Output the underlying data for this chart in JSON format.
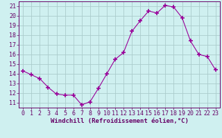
{
  "x": [
    0,
    1,
    2,
    3,
    4,
    5,
    6,
    7,
    8,
    9,
    10,
    11,
    12,
    13,
    14,
    15,
    16,
    17,
    18,
    19,
    20,
    21,
    22,
    23
  ],
  "y": [
    14.3,
    13.9,
    13.5,
    12.6,
    11.9,
    11.8,
    11.8,
    10.8,
    11.1,
    12.5,
    14.0,
    15.5,
    16.2,
    18.4,
    19.5,
    20.5,
    20.3,
    21.1,
    20.9,
    19.8,
    17.4,
    16.0,
    15.8,
    14.4
  ],
  "line_color": "#990099",
  "marker": "+",
  "marker_size": 4,
  "marker_lw": 1.2,
  "bg_color": "#cff0f0",
  "grid_color": "#aacccc",
  "xlabel": "Windchill (Refroidissement éolien,°C)",
  "xlabel_fontsize": 6.5,
  "xlabel_color": "#660066",
  "tick_color": "#660066",
  "tick_fontsize": 6.0,
  "ylim": [
    10.5,
    21.5
  ],
  "yticks": [
    11,
    12,
    13,
    14,
    15,
    16,
    17,
    18,
    19,
    20,
    21
  ],
  "xlim": [
    -0.5,
    23.5
  ],
  "xticks": [
    0,
    1,
    2,
    3,
    4,
    5,
    6,
    7,
    8,
    9,
    10,
    11,
    12,
    13,
    14,
    15,
    16,
    17,
    18,
    19,
    20,
    21,
    22,
    23
  ]
}
